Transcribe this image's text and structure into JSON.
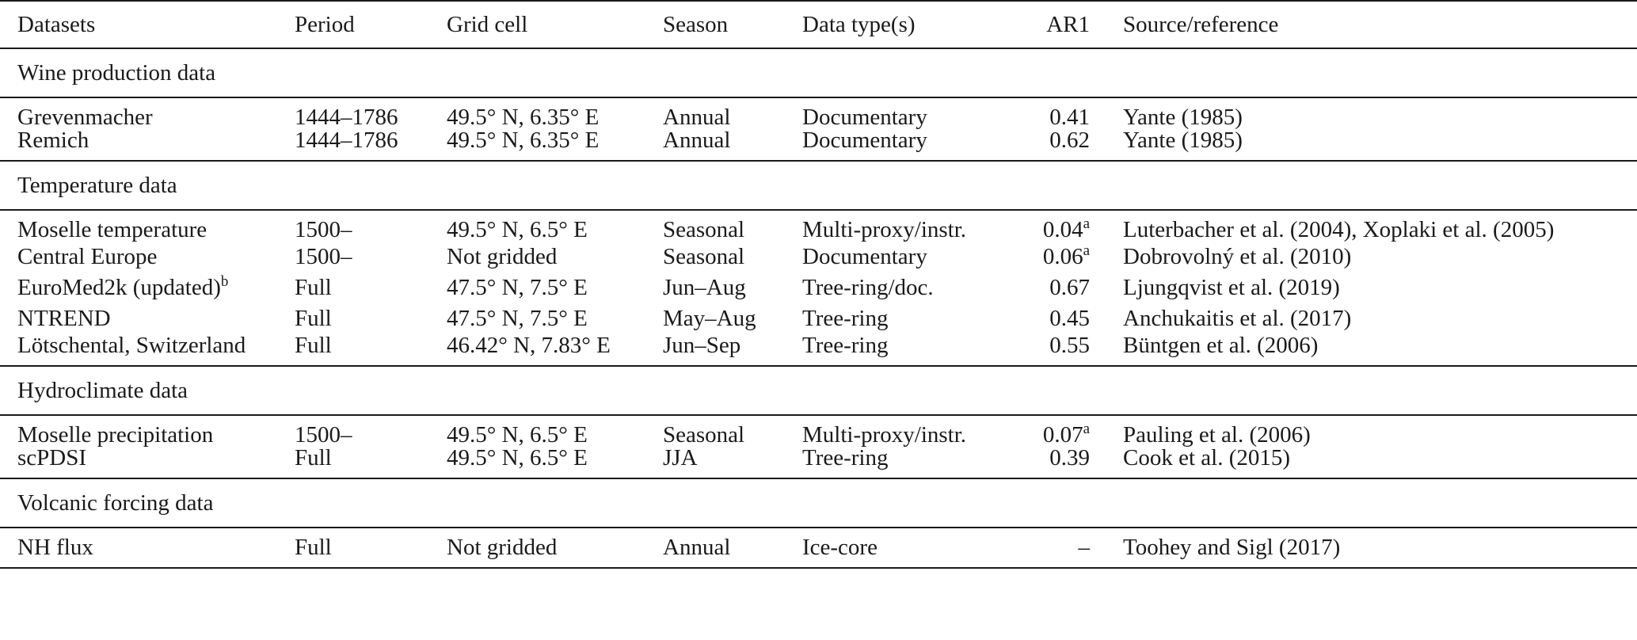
{
  "table": {
    "headers": {
      "dataset": "Datasets",
      "period": "Period",
      "grid": "Grid cell",
      "season": "Season",
      "type": "Data type(s)",
      "ar1": "AR1",
      "source": "Source/reference"
    },
    "sections": [
      {
        "title": "Wine production data",
        "rows": [
          {
            "dataset": "Grevenmacher",
            "dataset_sup": "",
            "period": "1444–1786",
            "grid": "49.5° N, 6.35° E",
            "season": "Annual",
            "type": "Documentary",
            "ar1": "0.41",
            "ar1_sup": "",
            "source": "Yante (1985)"
          },
          {
            "dataset": "Remich",
            "dataset_sup": "",
            "period": "1444–1786",
            "grid": "49.5° N, 6.35° E",
            "season": "Annual",
            "type": "Documentary",
            "ar1": "0.62",
            "ar1_sup": "",
            "source": "Yante (1985)"
          }
        ]
      },
      {
        "title": "Temperature data",
        "rows": [
          {
            "dataset": "Moselle temperature",
            "dataset_sup": "",
            "period": "1500–",
            "grid": "49.5° N, 6.5° E",
            "season": "Seasonal",
            "type": "Multi-proxy/instr.",
            "ar1": "0.04",
            "ar1_sup": "a",
            "source": "Luterbacher et al. (2004), Xoplaki et al. (2005)"
          },
          {
            "dataset": "Central Europe",
            "dataset_sup": "",
            "period": "1500–",
            "grid": "Not gridded",
            "season": "Seasonal",
            "type": "Documentary",
            "ar1": "0.06",
            "ar1_sup": "a",
            "source": "Dobrovolný et al. (2010)"
          },
          {
            "dataset": "EuroMed2k (updated)",
            "dataset_sup": "b",
            "period": "Full",
            "grid": "47.5° N, 7.5° E",
            "season": "Jun–Aug",
            "type": "Tree-ring/doc.",
            "ar1": "0.67",
            "ar1_sup": "",
            "source": "Ljungqvist et al. (2019)"
          },
          {
            "dataset": "NTREND",
            "dataset_sup": "",
            "period": "Full",
            "grid": "47.5° N, 7.5° E",
            "season": "May–Aug",
            "type": "Tree-ring",
            "ar1": "0.45",
            "ar1_sup": "",
            "source": "Anchukaitis et al. (2017)"
          },
          {
            "dataset": "Lötschental, Switzerland",
            "dataset_sup": "",
            "period": "Full",
            "grid": "46.42° N, 7.83° E",
            "season": "Jun–Sep",
            "type": "Tree-ring",
            "ar1": "0.55",
            "ar1_sup": "",
            "source": "Büntgen et al. (2006)"
          }
        ]
      },
      {
        "title": "Hydroclimate data",
        "rows": [
          {
            "dataset": "Moselle precipitation",
            "dataset_sup": "",
            "period": "1500–",
            "grid": "49.5° N, 6.5° E",
            "season": "Seasonal",
            "type": "Multi-proxy/instr.",
            "ar1": "0.07",
            "ar1_sup": "a",
            "source": "Pauling et al. (2006)"
          },
          {
            "dataset": "scPDSI",
            "dataset_sup": "",
            "period": "Full",
            "grid": "49.5° N, 6.5° E",
            "season": "JJA",
            "type": "Tree-ring",
            "ar1": "0.39",
            "ar1_sup": "",
            "source": "Cook et al. (2015)"
          }
        ]
      },
      {
        "title": "Volcanic forcing data",
        "rows": [
          {
            "dataset": "NH flux",
            "dataset_sup": "",
            "period": "Full",
            "grid": "Not gridded",
            "season": "Annual",
            "type": "Ice-core",
            "ar1": "–",
            "ar1_sup": "",
            "source": "Toohey and Sigl (2017)"
          }
        ]
      }
    ]
  }
}
